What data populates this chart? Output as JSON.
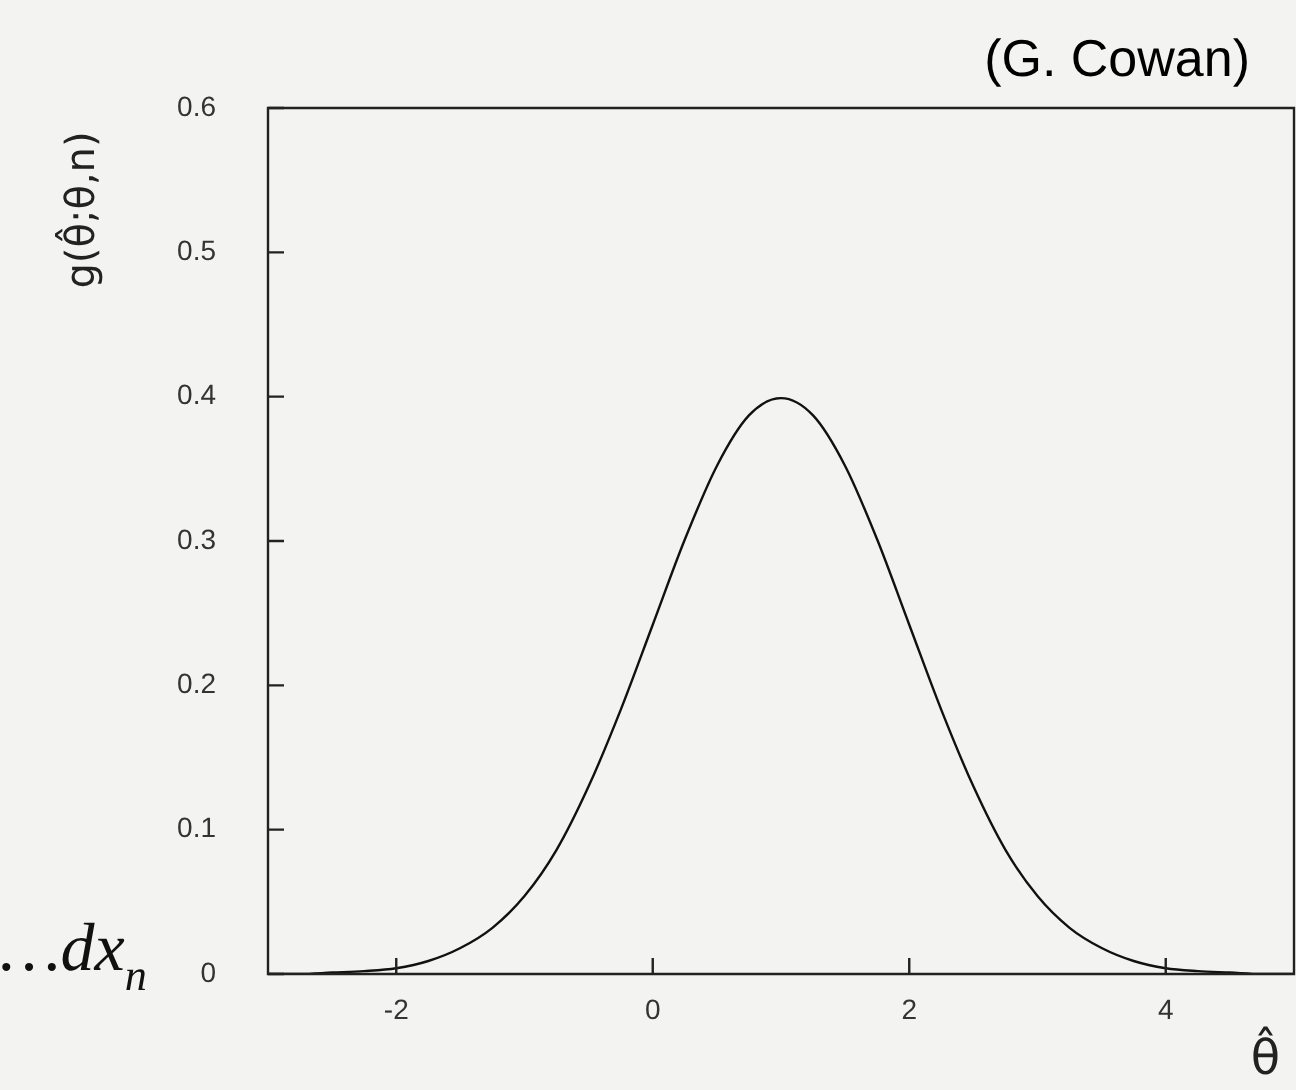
{
  "chart_data": {
    "type": "line",
    "xlabel": "θ̂",
    "ylabel": "g(θ̂;θ,n)",
    "annotations": [
      "(G. Cowan)",
      "…dx$_{n}$"
    ],
    "x": [
      -3,
      -2.75,
      -2.5,
      -2.25,
      -2,
      -1.75,
      -1.5,
      -1.25,
      -1,
      -0.75,
      -0.5,
      -0.25,
      0,
      0.25,
      0.5,
      0.75,
      1,
      1.25,
      1.5,
      1.75,
      2,
      2.25,
      2.5,
      2.75,
      3,
      3.25,
      3.5,
      3.75,
      4,
      4.25,
      4.5,
      4.75,
      5
    ],
    "series": [
      {
        "color": "#111111",
        "values": [
          0,
          0,
          0.001,
          0.002,
          0.004,
          0.009,
          0.018,
          0.032,
          0.054,
          0.086,
          0.13,
          0.183,
          0.242,
          0.301,
          0.352,
          0.387,
          0.399,
          0.387,
          0.352,
          0.301,
          0.242,
          0.183,
          0.13,
          0.086,
          0.054,
          0.032,
          0.018,
          0.009,
          0.004,
          0.002,
          0.001,
          0,
          0
        ]
      }
    ],
    "xlim": [
      -3,
      5
    ],
    "xticks": [
      -2,
      0,
      2,
      4
    ],
    "ylim": [
      0,
      0.6
    ],
    "yticks": [
      0,
      0.1,
      0.2,
      0.3,
      0.4,
      0.5,
      0.6
    ],
    "grid": false,
    "legend": false,
    "marker": "none",
    "line_style": "solid"
  }
}
